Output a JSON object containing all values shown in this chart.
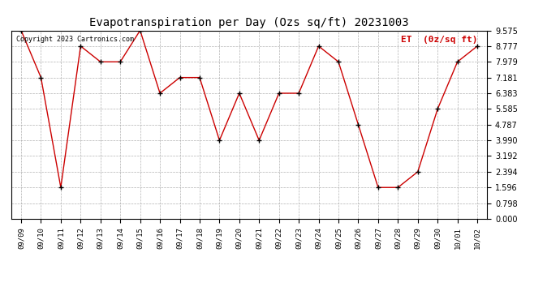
{
  "title": "Evapotranspiration per Day (Ozs sq/ft) 20231003",
  "legend_label": "ET  (0z/sq ft)",
  "copyright": "Copyright 2023 Cartronics.com",
  "dates": [
    "09/09",
    "09/10",
    "09/11",
    "09/12",
    "09/13",
    "09/14",
    "09/15",
    "09/16",
    "09/17",
    "09/18",
    "09/19",
    "09/20",
    "09/21",
    "09/22",
    "09/23",
    "09/24",
    "09/25",
    "09/26",
    "09/27",
    "09/28",
    "09/29",
    "09/30",
    "10/01",
    "10/02"
  ],
  "values": [
    9.575,
    7.181,
    1.596,
    8.777,
    7.979,
    7.979,
    9.575,
    6.383,
    7.181,
    7.181,
    3.99,
    6.383,
    3.99,
    6.383,
    6.383,
    8.777,
    7.979,
    4.787,
    1.596,
    1.596,
    2.394,
    5.585,
    7.979,
    8.777
  ],
  "line_color": "#cc0000",
  "marker_color": "#000000",
  "bg_color": "#ffffff",
  "grid_color": "#aaaaaa",
  "title_color": "#000000",
  "legend_color": "#cc0000",
  "copyright_color": "#000000",
  "ylim": [
    0.0,
    9.575
  ],
  "yticks": [
    0.0,
    0.798,
    1.596,
    2.394,
    3.192,
    3.99,
    4.787,
    5.585,
    6.383,
    7.181,
    7.979,
    8.777,
    9.575
  ]
}
